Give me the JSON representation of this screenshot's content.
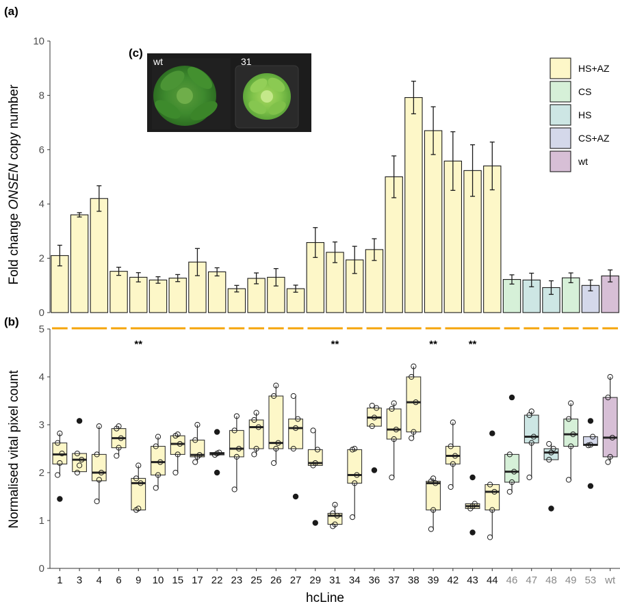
{
  "panel_labels": {
    "a": "(a)",
    "b": "(b)",
    "c": "(c)"
  },
  "photo": {
    "left_label": "wt",
    "right_label": "31"
  },
  "colors": {
    "HS+AZ": "#fdf7c8",
    "CS": "#d6f0d8",
    "HS": "#cde6e4",
    "CS+AZ": "#d4d8ea",
    "wt": "#d7bfd6",
    "bracket": "#f5a40a"
  },
  "legend": [
    {
      "label": "HS+AZ",
      "key": "HS+AZ"
    },
    {
      "label": "CS",
      "key": "CS"
    },
    {
      "label": "HS",
      "key": "HS"
    },
    {
      "label": "CS+AZ",
      "key": "CS+AZ"
    },
    {
      "label": "wt",
      "key": "wt"
    }
  ],
  "chart_data": [
    {
      "type": "bar",
      "panel": "(a)",
      "ylabel_pre": "Fold change ",
      "ylabel_italic": "ONSEN",
      "ylabel_post": " copy number",
      "ylim": [
        0,
        10
      ],
      "yticks": [
        "0",
        "2",
        "4",
        "6",
        "8",
        "10"
      ],
      "categories": [
        "1",
        "3",
        "4",
        "6",
        "9",
        "10",
        "15",
        "17",
        "22",
        "23",
        "25",
        "26",
        "27",
        "29",
        "31",
        "34",
        "36",
        "37",
        "38",
        "39",
        "42",
        "43",
        "44",
        "46",
        "47",
        "48",
        "49",
        "53",
        "wt"
      ],
      "groups": [
        "HS+AZ",
        "HS+AZ",
        "HS+AZ",
        "HS+AZ",
        "HS+AZ",
        "HS+AZ",
        "HS+AZ",
        "HS+AZ",
        "HS+AZ",
        "HS+AZ",
        "HS+AZ",
        "HS+AZ",
        "HS+AZ",
        "HS+AZ",
        "HS+AZ",
        "HS+AZ",
        "HS+AZ",
        "HS+AZ",
        "HS+AZ",
        "HS+AZ",
        "HS+AZ",
        "HS+AZ",
        "HS+AZ",
        "CS",
        "HS",
        "HS",
        "CS",
        "CS+AZ",
        "wt"
      ],
      "values": [
        2.1,
        3.6,
        4.2,
        1.52,
        1.3,
        1.2,
        1.27,
        1.86,
        1.5,
        0.88,
        1.26,
        1.3,
        0.88,
        2.58,
        2.22,
        1.94,
        2.32,
        5.0,
        7.92,
        6.7,
        5.58,
        5.23,
        5.4,
        1.22,
        1.2,
        0.92,
        1.28,
        1.0,
        1.35
      ],
      "errors": [
        0.38,
        0.08,
        0.47,
        0.15,
        0.17,
        0.12,
        0.13,
        0.5,
        0.15,
        0.12,
        0.2,
        0.32,
        0.13,
        0.55,
        0.38,
        0.5,
        0.4,
        0.77,
        0.6,
        0.88,
        1.08,
        0.95,
        0.88,
        0.17,
        0.25,
        0.25,
        0.18,
        0.2,
        0.22
      ]
    },
    {
      "type": "box",
      "panel": "(b)",
      "xlabel": "hcLine",
      "ylabel": "Normalised vital pixel count",
      "ylim": [
        0,
        5
      ],
      "yticks": [
        "0",
        "1",
        "2",
        "3",
        "4",
        "5"
      ],
      "significance": [
        {
          "category": "9",
          "label": "**"
        },
        {
          "category": "31",
          "label": "**"
        },
        {
          "category": "39",
          "label": "**"
        },
        {
          "category": "43",
          "label": "**"
        }
      ],
      "brackets": [
        [
          0,
          1
        ],
        [
          1,
          3
        ],
        [
          3,
          4
        ],
        [
          4,
          7
        ],
        [
          7,
          9
        ],
        [
          9,
          10
        ],
        [
          10,
          11
        ],
        [
          11,
          12
        ],
        [
          12,
          13
        ],
        [
          13,
          15
        ],
        [
          15,
          16
        ],
        [
          16,
          17
        ],
        [
          17,
          19
        ],
        [
          19,
          20
        ],
        [
          20,
          23
        ],
        [
          23,
          24
        ],
        [
          24,
          25
        ],
        [
          25,
          26
        ],
        [
          26,
          27
        ],
        [
          27,
          28
        ],
        [
          28,
          29
        ]
      ],
      "boxes": [
        {
          "category": "1",
          "q1": 2.18,
          "median": 2.38,
          "q3": 2.62,
          "whisker_low": 1.95,
          "whisker_high": 2.82,
          "outliers": [
            1.45
          ],
          "points": [
            1.95,
            2.2,
            2.4,
            2.62,
            2.82
          ]
        },
        {
          "category": "3",
          "q1": 2.02,
          "median": 2.27,
          "q3": 2.4,
          "whisker_low": 2.0,
          "whisker_high": 2.4,
          "outliers": [
            3.08
          ],
          "points": [
            2.0,
            2.15,
            2.27,
            2.4,
            3.08
          ]
        },
        {
          "category": "4",
          "q1": 1.83,
          "median": 2.0,
          "q3": 2.38,
          "whisker_low": 1.4,
          "whisker_high": 2.97,
          "outliers": [],
          "points": [
            1.4,
            1.85,
            2.0,
            2.38,
            2.97
          ]
        },
        {
          "category": "6",
          "q1": 2.52,
          "median": 2.72,
          "q3": 2.92,
          "whisker_low": 2.35,
          "whisker_high": 2.97,
          "outliers": [],
          "points": [
            2.35,
            2.52,
            2.72,
            2.92,
            2.97
          ]
        },
        {
          "category": "9",
          "q1": 1.22,
          "median": 1.78,
          "q3": 1.88,
          "whisker_low": 1.22,
          "whisker_high": 2.15,
          "outliers": [],
          "points": [
            1.22,
            1.25,
            1.78,
            1.88,
            2.15
          ]
        },
        {
          "category": "10",
          "q1": 1.95,
          "median": 2.22,
          "q3": 2.55,
          "whisker_low": 1.68,
          "whisker_high": 2.75,
          "outliers": [],
          "points": [
            1.68,
            1.95,
            2.22,
            2.55,
            2.75
          ]
        },
        {
          "category": "15",
          "q1": 2.38,
          "median": 2.6,
          "q3": 2.77,
          "whisker_low": 2.0,
          "whisker_high": 2.8,
          "outliers": [],
          "points": [
            2.0,
            2.38,
            2.6,
            2.77,
            2.8
          ]
        },
        {
          "category": "17",
          "q1": 2.33,
          "median": 2.37,
          "q3": 2.68,
          "whisker_low": 2.22,
          "whisker_high": 3.0,
          "outliers": [],
          "points": [
            2.22,
            2.33,
            2.37,
            2.68,
            3.0
          ]
        },
        {
          "category": "22",
          "q1": 2.37,
          "median": 2.4,
          "q3": 2.42,
          "whisker_low": 2.37,
          "whisker_high": 2.42,
          "outliers": [
            2.0,
            2.85
          ],
          "points": [
            2.37,
            2.4,
            2.42
          ]
        },
        {
          "category": "23",
          "q1": 2.33,
          "median": 2.5,
          "q3": 2.88,
          "whisker_low": 1.65,
          "whisker_high": 3.18,
          "outliers": [],
          "points": [
            1.65,
            2.33,
            2.5,
            2.88,
            3.18
          ]
        },
        {
          "category": "25",
          "q1": 2.5,
          "median": 2.95,
          "q3": 3.1,
          "whisker_low": 2.38,
          "whisker_high": 3.25,
          "outliers": [],
          "points": [
            2.38,
            2.5,
            2.95,
            3.1,
            3.25
          ]
        },
        {
          "category": "26",
          "q1": 2.5,
          "median": 2.62,
          "q3": 3.6,
          "whisker_low": 2.2,
          "whisker_high": 3.82,
          "outliers": [],
          "points": [
            2.2,
            2.5,
            2.62,
            3.6,
            3.82
          ]
        },
        {
          "category": "27",
          "q1": 2.5,
          "median": 2.93,
          "q3": 3.12,
          "whisker_low": 2.5,
          "whisker_high": 3.6,
          "outliers": [
            1.5
          ],
          "points": [
            2.5,
            2.93,
            3.12,
            3.6
          ]
        },
        {
          "category": "29",
          "q1": 2.15,
          "median": 2.2,
          "q3": 2.48,
          "whisker_low": 2.15,
          "whisker_high": 2.88,
          "outliers": [
            0.95
          ],
          "points": [
            2.15,
            2.2,
            2.48,
            2.88
          ]
        },
        {
          "category": "31",
          "q1": 0.92,
          "median": 1.1,
          "q3": 1.15,
          "whisker_low": 0.88,
          "whisker_high": 1.33,
          "outliers": [],
          "points": [
            0.88,
            0.92,
            1.1,
            1.15,
            1.33
          ]
        },
        {
          "category": "34",
          "q1": 1.78,
          "median": 1.95,
          "q3": 2.48,
          "whisker_low": 1.07,
          "whisker_high": 2.5,
          "outliers": [],
          "points": [
            1.07,
            1.78,
            1.95,
            2.48,
            2.5
          ]
        },
        {
          "category": "36",
          "q1": 2.97,
          "median": 3.15,
          "q3": 3.35,
          "whisker_low": 2.97,
          "whisker_high": 3.4,
          "outliers": [
            2.05
          ],
          "points": [
            2.97,
            3.15,
            3.35,
            3.4
          ]
        },
        {
          "category": "37",
          "q1": 2.7,
          "median": 2.9,
          "q3": 3.33,
          "whisker_low": 1.9,
          "whisker_high": 3.45,
          "outliers": [],
          "points": [
            1.9,
            2.7,
            2.9,
            3.33,
            3.45
          ]
        },
        {
          "category": "38",
          "q1": 2.85,
          "median": 3.47,
          "q3": 4.0,
          "whisker_low": 2.72,
          "whisker_high": 4.22,
          "outliers": [],
          "points": [
            2.72,
            2.85,
            3.47,
            4.0,
            4.22
          ]
        },
        {
          "category": "39",
          "q1": 1.22,
          "median": 1.78,
          "q3": 1.82,
          "whisker_low": 0.82,
          "whisker_high": 1.88,
          "outliers": [],
          "points": [
            0.82,
            1.22,
            1.78,
            1.82,
            1.88
          ]
        },
        {
          "category": "42",
          "q1": 2.18,
          "median": 2.35,
          "q3": 2.55,
          "whisker_low": 1.7,
          "whisker_high": 3.05,
          "outliers": [],
          "points": [
            1.7,
            2.18,
            2.35,
            2.55,
            3.05
          ]
        },
        {
          "category": "43",
          "q1": 1.25,
          "median": 1.3,
          "q3": 1.35,
          "whisker_low": 1.25,
          "whisker_high": 1.35,
          "outliers": [
            0.75,
            1.9
          ],
          "points": [
            1.25,
            1.3,
            1.35
          ]
        },
        {
          "category": "44",
          "q1": 1.22,
          "median": 1.6,
          "q3": 1.75,
          "whisker_low": 0.65,
          "whisker_high": 1.75,
          "outliers": [
            2.82
          ],
          "points": [
            0.65,
            1.22,
            1.6,
            1.75
          ]
        },
        {
          "category": "46",
          "q1": 1.8,
          "median": 2.02,
          "q3": 2.38,
          "whisker_low": 1.6,
          "whisker_high": 2.38,
          "outliers": [
            3.57
          ],
          "points": [
            1.6,
            1.8,
            2.02,
            2.38
          ]
        },
        {
          "category": "47",
          "q1": 2.62,
          "median": 2.75,
          "q3": 3.2,
          "whisker_low": 1.9,
          "whisker_high": 3.28,
          "outliers": [],
          "points": [
            1.9,
            2.62,
            2.75,
            3.2,
            3.28
          ]
        },
        {
          "category": "48",
          "q1": 2.27,
          "median": 2.42,
          "q3": 2.5,
          "whisker_low": 2.27,
          "whisker_high": 2.6,
          "outliers": [
            1.25
          ],
          "points": [
            2.27,
            2.42,
            2.5,
            2.6
          ]
        },
        {
          "category": "49",
          "q1": 2.55,
          "median": 2.8,
          "q3": 3.12,
          "whisker_low": 1.85,
          "whisker_high": 3.45,
          "outliers": [],
          "points": [
            1.85,
            2.55,
            2.8,
            3.12,
            3.45
          ]
        },
        {
          "category": "53",
          "q1": 2.57,
          "median": 2.58,
          "q3": 2.75,
          "whisker_low": 2.57,
          "whisker_high": 2.75,
          "outliers": [
            1.72,
            3.08
          ],
          "points": [
            2.57,
            2.58,
            2.75
          ]
        },
        {
          "category": "wt",
          "q1": 2.33,
          "median": 2.73,
          "q3": 3.57,
          "whisker_low": 2.22,
          "whisker_high": 4.0,
          "outliers": [],
          "points": [
            2.22,
            2.33,
            2.73,
            3.57,
            4.0
          ]
        }
      ]
    }
  ]
}
